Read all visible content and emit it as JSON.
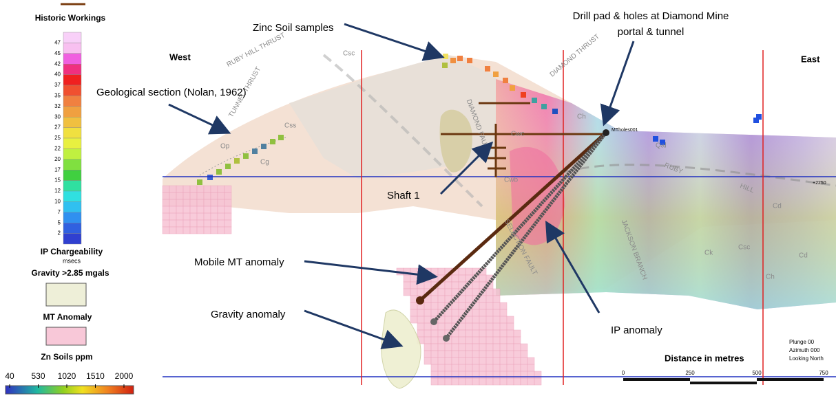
{
  "legend": {
    "historic_workings": "Historic Workings",
    "ip_ticks": [
      47,
      45,
      42,
      40,
      37,
      35,
      32,
      30,
      27,
      25,
      22,
      20,
      17,
      15,
      12,
      10,
      7,
      5,
      2
    ],
    "ip_title": "IP Chargeability",
    "ip_units": "msecs",
    "gravity": "Gravity >2.85 mgals",
    "mt": "MT Anomaly",
    "zn_title": "Zn Soils ppm",
    "zn_ticks": [
      40,
      530,
      1020,
      1510,
      2000
    ]
  },
  "map": {
    "west": "West",
    "east": "East",
    "zinc_soil": "Zinc Soil samples",
    "drill_pad": [
      "Drill pad & holes at Diamond Mine",
      "portal & tunnel"
    ],
    "geo_section": "Geological section (Nolan, 1962)",
    "shaft": "Shaft 1",
    "mobile_mt": "Mobile MT anomaly",
    "gravity_anomaly": "Gravity anomaly",
    "ip_anomaly": "IP anomaly",
    "distance": "Distance in metres",
    "scale_ticks": [
      0,
      250,
      500,
      750
    ],
    "view": [
      "Plunge 00",
      "Azimuth 000",
      "Looking North"
    ],
    "hole": "MTholes001",
    "elevation": "+2250",
    "geo_labels": [
      "Csc",
      "Op",
      "Cg",
      "Css",
      "Cwc",
      "Cwb",
      "Ch",
      "Cd",
      "Ck",
      "Qal",
      "Csc",
      "Cd",
      "Ch",
      "TUNNEL THRUST",
      "RUBY HILL THRUST",
      "DIAMOND THRUST",
      "DIAMOND FAULT",
      "JACKSON BRANCH",
      "RUBY",
      "HILL",
      "SELECTION FAULT"
    ]
  }
}
